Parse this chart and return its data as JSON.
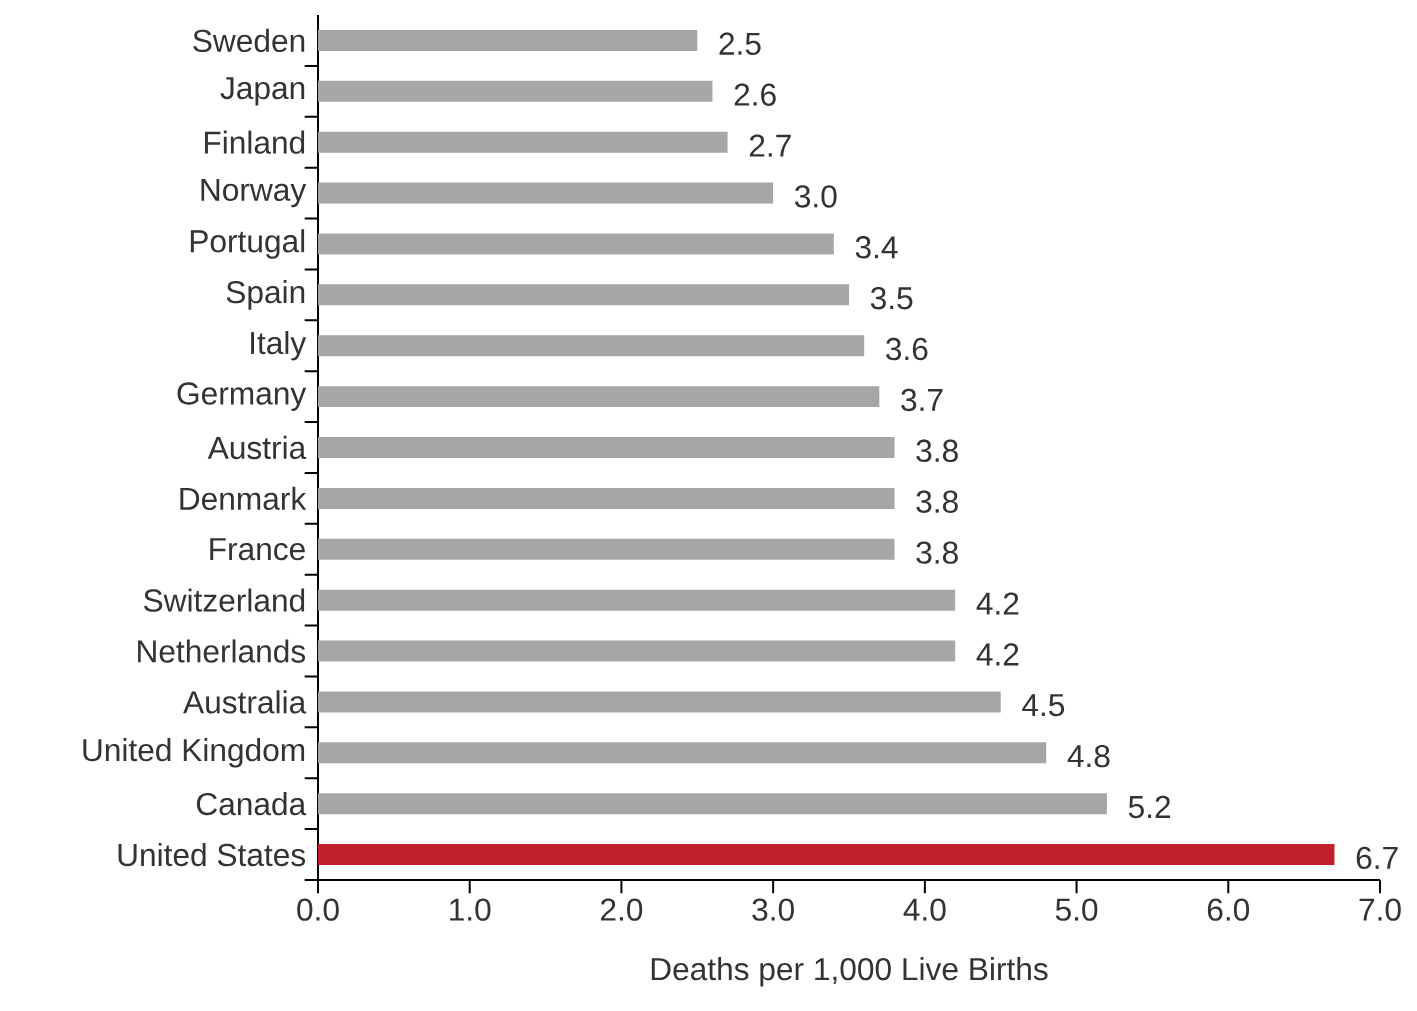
{
  "chart_data": {
    "type": "bar",
    "orientation": "horizontal",
    "categories": [
      "Sweden",
      "Japan",
      "Finland",
      "Norway",
      "Portugal",
      "Spain",
      "Italy",
      "Germany",
      "Austria",
      "Denmark",
      "France",
      "Switzerland",
      "Netherlands",
      "Australia",
      "United Kingdom",
      "Canada",
      "United States"
    ],
    "values": [
      2.5,
      2.6,
      2.7,
      3.0,
      3.4,
      3.5,
      3.6,
      3.7,
      3.8,
      3.8,
      3.8,
      4.2,
      4.2,
      4.5,
      4.8,
      5.2,
      6.7
    ],
    "value_labels": [
      "2.5",
      "2.6",
      "2.7",
      "3.0",
      "3.4",
      "3.5",
      "3.6",
      "3.7",
      "3.8",
      "3.8",
      "3.8",
      "4.2",
      "4.2",
      "4.5",
      "4.8",
      "5.2",
      "6.7"
    ],
    "colors": [
      "#a6a6a6",
      "#a6a6a6",
      "#a6a6a6",
      "#a6a6a6",
      "#a6a6a6",
      "#a6a6a6",
      "#a6a6a6",
      "#a6a6a6",
      "#a6a6a6",
      "#a6a6a6",
      "#a6a6a6",
      "#a6a6a6",
      "#a6a6a6",
      "#a6a6a6",
      "#a6a6a6",
      "#a6a6a6",
      "#c0202a"
    ],
    "xlim": [
      0,
      7
    ],
    "xticks": [
      {
        "value": 0,
        "label": "0.0"
      },
      {
        "value": 1,
        "label": "1.0"
      },
      {
        "value": 2,
        "label": "2.0"
      },
      {
        "value": 3,
        "label": "3.0"
      },
      {
        "value": 4,
        "label": "4.0"
      },
      {
        "value": 5,
        "label": "5.0"
      },
      {
        "value": 6,
        "label": "6.0"
      },
      {
        "value": 7,
        "label": "7.0"
      }
    ],
    "xlabel": "Deaths per 1,000 Live Births"
  }
}
